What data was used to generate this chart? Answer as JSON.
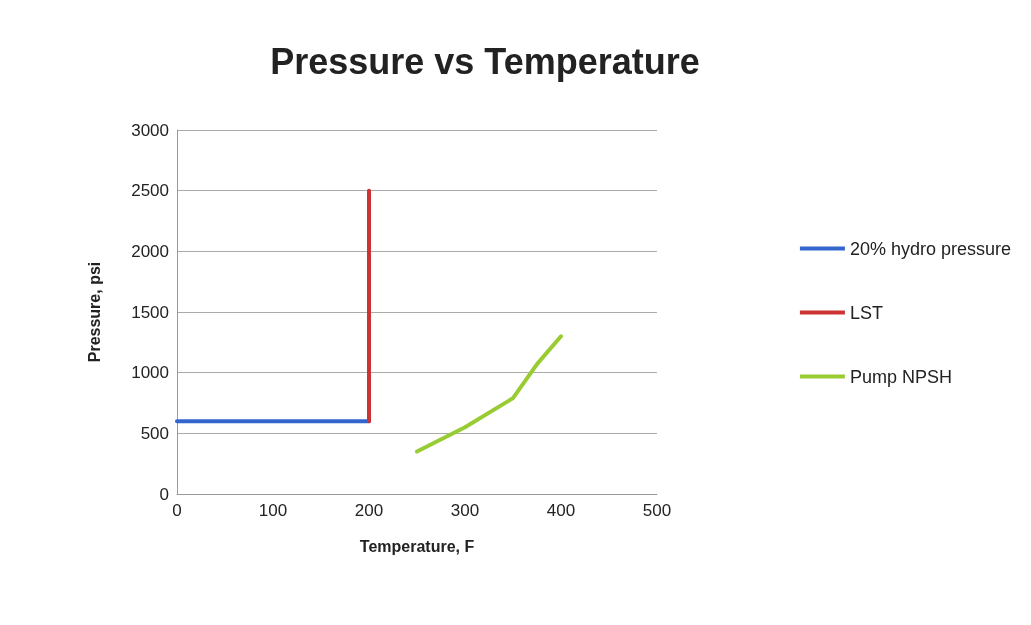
{
  "chart_data": {
    "type": "line",
    "title": "Pressure vs Temperature",
    "xlabel": "Temperature, F",
    "ylabel": "Pressure, psi",
    "series": [
      {
        "name": "20% hydro pressure",
        "color": "#3366cc",
        "x": [
          0,
          200
        ],
        "values": [
          600,
          600
        ]
      },
      {
        "name": "LST",
        "color": "#cc3333",
        "x": [
          200,
          200
        ],
        "values": [
          600,
          2500
        ]
      },
      {
        "name": "Pump NPSH",
        "color": "#99cc33",
        "x": [
          250,
          300,
          350,
          375,
          400
        ],
        "values": [
          350,
          550,
          790,
          1070,
          1300
        ]
      }
    ],
    "xlim": [
      0,
      500
    ],
    "xticks": [
      0,
      100,
      200,
      300,
      400,
      500
    ],
    "ylim": [
      0,
      3000
    ],
    "yticks": [
      0,
      500,
      1000,
      1500,
      2000,
      2500,
      3000
    ],
    "grid": "y",
    "legend": "right",
    "marker": "none",
    "line_style": "solid"
  }
}
